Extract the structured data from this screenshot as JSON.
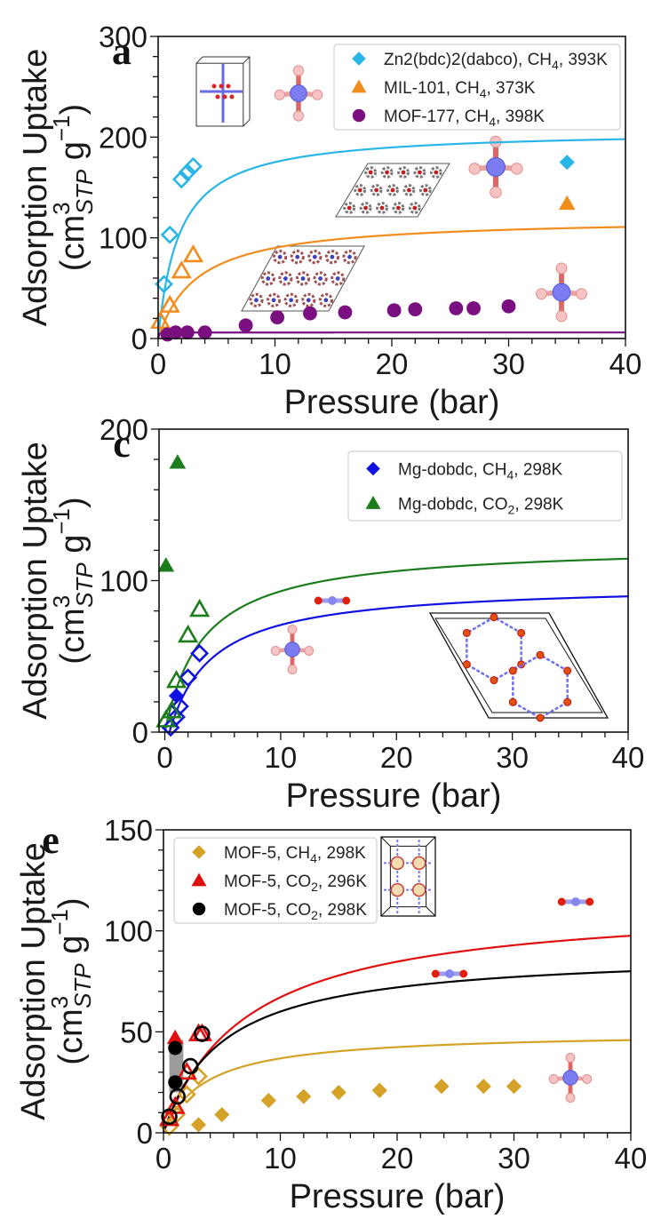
{
  "chart_data": [
    {
      "panel": "a",
      "type": "scatter",
      "title": "",
      "xlabel": "Pressure (bar)",
      "ylabel_line1": "Adsorption Uptake",
      "ylabel_line2": "(cm3STP g-1)",
      "ylabel_parts": {
        "main": "(cm",
        "sup": "3",
        "sub": "STP",
        "tail": " g",
        "sup2": "−1",
        "close": ")"
      },
      "xlim": [
        0,
        40
      ],
      "ylim": [
        0,
        300
      ],
      "xticks": [
        0,
        10,
        20,
        30,
        40
      ],
      "yticks": [
        0,
        100,
        200,
        300
      ],
      "x_minor_step": 2,
      "y_minor_step": 20,
      "grid": false,
      "legend_position": "top-right",
      "series": [
        {
          "name": "Zn2(bdc)2(dabco), CH4, 393K",
          "legend_label": {
            "pre": "Zn2(bdc)2(dabco), CH",
            "sub": "4",
            "post": ", 393K"
          },
          "color": "#29b6e6",
          "marker": "diamond",
          "filled_points": [
            [
              35,
              175
            ]
          ],
          "open_points": [
            [
              0.5,
              54
            ],
            [
              1,
              103
            ],
            [
              2,
              158
            ],
            [
              2.5,
              165
            ],
            [
              3,
              171
            ]
          ],
          "fit": {
            "qmax": 207,
            "b": 0.55
          }
        },
        {
          "name": "MIL-101, CH4, 373K",
          "legend_label": {
            "pre": "MIL-101, CH",
            "sub": "4",
            "post": ", 373K"
          },
          "color": "#f28c1c",
          "marker": "triangle",
          "filled_points": [
            [
              35,
              134
            ]
          ],
          "open_points": [
            [
              0.2,
              17
            ],
            [
              1,
              33
            ],
            [
              2,
              67
            ],
            [
              3,
              83
            ]
          ],
          "fit": {
            "qmax": 120,
            "b": 0.3
          }
        },
        {
          "name": "MOF-177, CH4, 398K",
          "legend_label": {
            "pre": "MOF-177, CH",
            "sub": "4",
            "post": ", 398K"
          },
          "color": "#7a0f80",
          "marker": "circle",
          "filled_points": [
            [
              0.8,
              4
            ],
            [
              1.5,
              6
            ],
            [
              2.5,
              6
            ],
            [
              4,
              6
            ],
            [
              7.5,
              13
            ],
            [
              10.2,
              21
            ],
            [
              13,
              25
            ],
            [
              16,
              26
            ],
            [
              20.2,
              28
            ],
            [
              22,
              29
            ],
            [
              25.5,
              30
            ],
            [
              27,
              30
            ],
            [
              30,
              32
            ]
          ],
          "open_points": [],
          "fit": {
            "qmax": 6,
            "b": 30
          }
        }
      ],
      "insets": [
        "Zn2(bdc)2(dabco) unit cell",
        "MIL-101 framework",
        "MOF-177 framework",
        "CH4 molecule",
        "CH4 molecule",
        "CH4 molecule"
      ]
    },
    {
      "panel": "c",
      "type": "scatter",
      "title": "",
      "xlabel": "Pressure (bar)",
      "ylabel_line1": "Adsorption Uptake",
      "ylabel_line2": "(cm3STP g-1)",
      "ylabel_parts": {
        "main": "(cm",
        "sup": "3",
        "sub": "STP",
        "tail": " g",
        "sup2": "−1",
        "close": ")"
      },
      "xlim": [
        -0.5,
        40
      ],
      "ylim": [
        0,
        200
      ],
      "xticks": [
        0,
        10,
        20,
        30,
        40
      ],
      "yticks": [
        0,
        100,
        200
      ],
      "x_minor_step": 2,
      "y_minor_step": 20,
      "grid": false,
      "legend_position": "top-right",
      "series": [
        {
          "name": "Mg-dobdc, CH4, 298K",
          "legend_label": {
            "pre": "Mg-dobdc, CH",
            "sub": "4",
            "post": ", 298K"
          },
          "color": "#1010e0",
          "marker": "diamond",
          "filled_points": [
            [
              1,
              24
            ]
          ],
          "open_points": [
            [
              0.5,
              3
            ],
            [
              1,
              10
            ],
            [
              1.3,
              17
            ],
            [
              2,
              36
            ],
            [
              3,
              52
            ]
          ],
          "fit": {
            "qmax": 98,
            "b": 0.27,
            "x0": 0.4
          }
        },
        {
          "name": "Mg-dobdc, CO2, 298K",
          "legend_label": {
            "pre": "Mg-dobdc, CO",
            "sub": "2",
            "post": ", 298K"
          },
          "color": "#1c7d1c",
          "marker": "triangle",
          "filled_points": [
            [
              0.1,
              110
            ],
            [
              1.1,
              178
            ]
          ],
          "open_points": [
            [
              0.1,
              8
            ],
            [
              0.6,
              14
            ],
            [
              1,
              34
            ],
            [
              2,
              64
            ],
            [
              3,
              81
            ]
          ],
          "fit": {
            "qmax": 124,
            "b": 0.3,
            "x0": 0
          }
        }
      ],
      "insets": [
        "CO2 molecule",
        "CH4 molecule",
        "Mg-dobdc framework"
      ]
    },
    {
      "panel": "e",
      "type": "scatter",
      "title": "",
      "xlabel": "Pressure (bar)",
      "ylabel_line1": "Adsorption Uptake",
      "ylabel_line2": "(cm3STP g-1)",
      "ylabel_parts": {
        "main": "(cm",
        "sup": "3",
        "sub": "STP",
        "tail": " g",
        "sup2": "−1",
        "close": ")"
      },
      "xlim": [
        0,
        40
      ],
      "ylim": [
        0,
        150
      ],
      "xticks": [
        0,
        10,
        20,
        30,
        40
      ],
      "yticks": [
        0,
        50,
        100,
        150
      ],
      "x_minor_step": 2,
      "y_minor_step": 10,
      "grid": false,
      "legend_position": "top-left",
      "series": [
        {
          "name": "MOF-5, CH4, 298K",
          "legend_label": {
            "pre": "MOF-5, CH",
            "sub": "4",
            "post": ", 298K"
          },
          "color": "#d4a227",
          "marker": "diamond",
          "filled_points": [
            [
              3,
              4
            ],
            [
              5,
              9
            ],
            [
              9,
              16
            ],
            [
              12,
              18
            ],
            [
              15,
              20
            ],
            [
              18.5,
              21
            ],
            [
              23.8,
              23
            ],
            [
              27.4,
              23
            ],
            [
              30,
              23
            ]
          ],
          "open_points": [
            [
              0.5,
              3
            ],
            [
              1.1,
              9
            ],
            [
              2,
              19
            ],
            [
              3,
              28
            ]
          ],
          "fit": {
            "qmax": 50,
            "b": 0.28
          }
        },
        {
          "name": "MOF-5, CO2, 296K",
          "legend_label": {
            "pre": "MOF-5, CO",
            "sub": "2",
            "post": ", 296K"
          },
          "color": "#e01010",
          "marker": "triangle",
          "filled_points": [
            [
              1,
              47
            ]
          ],
          "open_points": [
            [
              0.5,
              7
            ],
            [
              1,
              13
            ],
            [
              2,
              30
            ],
            [
              3,
              49
            ],
            [
              3.3,
              49
            ]
          ],
          "fit": {
            "qmax": 115,
            "b": 0.14
          }
        },
        {
          "name": "MOF-5, CO2, 298K",
          "legend_label": {
            "pre": "MOF-5, CO",
            "sub": "2",
            "post": ", 298K"
          },
          "color": "#000000",
          "marker": "circle",
          "filled_points": [
            [
              1,
              42
            ],
            [
              1,
              25
            ]
          ],
          "open_points": [
            [
              0.5,
              8
            ],
            [
              1.2,
              18
            ],
            [
              2.3,
              33
            ],
            [
              3.3,
              49
            ]
          ],
          "fit": {
            "qmax": 90,
            "b": 0.2
          }
        }
      ],
      "shaded_box": {
        "x": [
          0.5,
          1.7
        ],
        "y": [
          20,
          46
        ],
        "color": "#8a8a8a"
      },
      "insets": [
        "MOF-5 unit cell",
        "CO2 molecule",
        "CO2 molecule",
        "CH4 molecule"
      ]
    }
  ]
}
